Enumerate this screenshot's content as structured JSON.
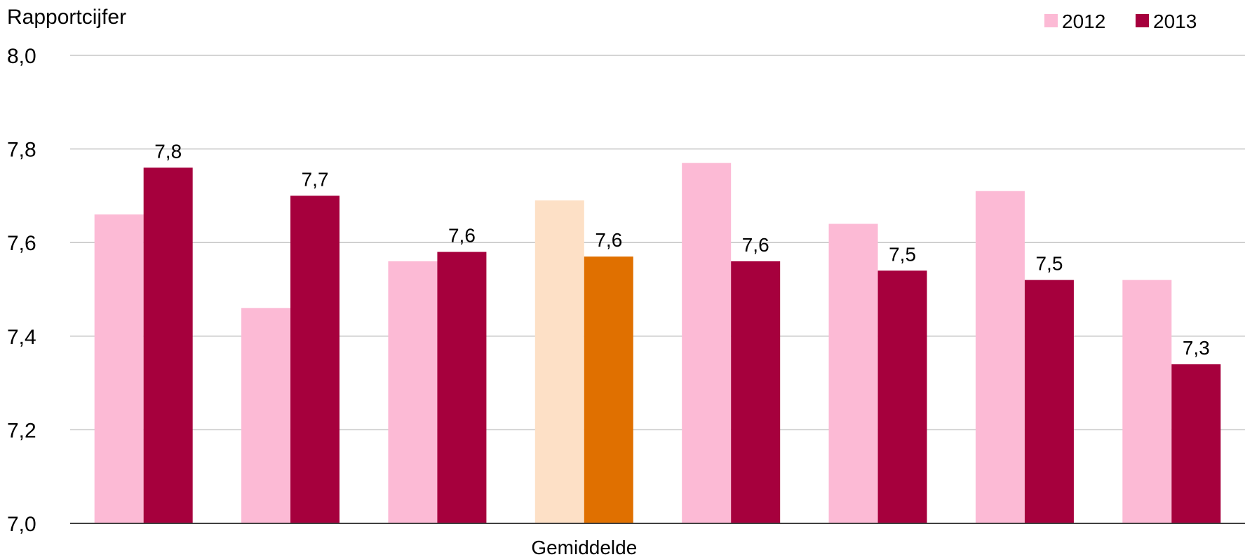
{
  "chart_data": {
    "type": "bar",
    "ylabel": "Rapportcijfer",
    "ylim": [
      7.0,
      8.0
    ],
    "yticks": [
      7.0,
      7.2,
      7.4,
      7.6,
      7.8,
      8.0
    ],
    "ytick_labels": [
      "7,0",
      "7,2",
      "7,4",
      "7,6",
      "7,8",
      "8,0"
    ],
    "grid": true,
    "legend_position": "top-right",
    "categories": [
      "",
      "",
      "",
      "Gemiddelde",
      "",
      "",
      "",
      ""
    ],
    "highlight_category_index": 3,
    "series": [
      {
        "name": "2012",
        "color": "#fcbad5",
        "highlight_color": "#fde0c6",
        "values": [
          7.66,
          7.46,
          7.56,
          7.69,
          7.77,
          7.64,
          7.71,
          7.52
        ],
        "data_labels": [
          "",
          "",
          "",
          "",
          "",
          "",
          "",
          ""
        ]
      },
      {
        "name": "2013",
        "color": "#a6003d",
        "highlight_color": "#e07000",
        "values": [
          7.76,
          7.7,
          7.58,
          7.57,
          7.56,
          7.54,
          7.52,
          7.34
        ],
        "data_labels": [
          "7,8",
          "7,7",
          "7,6",
          "7,6",
          "7,6",
          "7,5",
          "7,5",
          "7,3"
        ]
      }
    ]
  }
}
